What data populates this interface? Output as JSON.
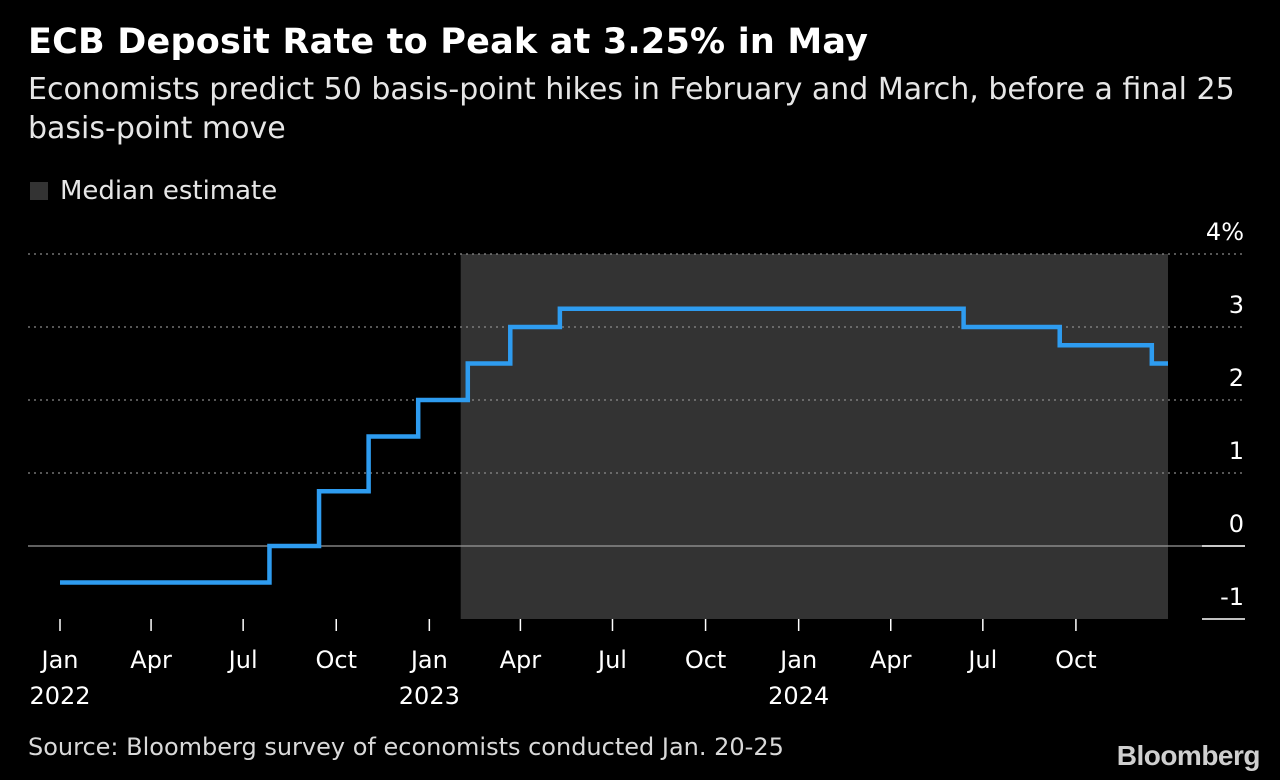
{
  "chart_data": {
    "type": "line",
    "title": "ECB Deposit Rate to Peak at 3.25% in May",
    "subtitle": "Economists predict 50 basis-point hikes in February and March, before a final 25 basis-point move",
    "legend": [
      {
        "label": "Median estimate",
        "color": "#333333"
      }
    ],
    "series": [
      {
        "color": "#2e9cf0",
        "interpolation": "step-after",
        "points": [
          {
            "x": "2022-01-01",
            "y": -0.5
          },
          {
            "x": "2022-07-27",
            "y": 0.0
          },
          {
            "x": "2022-09-14",
            "y": 0.75
          },
          {
            "x": "2022-11-02",
            "y": 1.5
          },
          {
            "x": "2022-12-21",
            "y": 2.0
          },
          {
            "x": "2023-02-08",
            "y": 2.5
          },
          {
            "x": "2023-03-22",
            "y": 3.0
          },
          {
            "x": "2023-05-10",
            "y": 3.25
          },
          {
            "x": "2024-06-12",
            "y": 3.0
          },
          {
            "x": "2024-09-15",
            "y": 2.75
          },
          {
            "x": "2024-12-15",
            "y": 2.5
          },
          {
            "x": "2024-12-31",
            "y": 2.5
          }
        ]
      }
    ],
    "shaded_region": {
      "x_start": "2023-02-01",
      "x_end": "2024-12-31",
      "label": "Median estimate"
    },
    "x_axis": {
      "range": [
        "2022-01-01",
        "2024-12-31"
      ],
      "ticks": [
        {
          "date": "2022-01-01",
          "label": "Jan",
          "year": "2022"
        },
        {
          "date": "2022-04-01",
          "label": "Apr",
          "year": ""
        },
        {
          "date": "2022-07-01",
          "label": "Jul",
          "year": ""
        },
        {
          "date": "2022-10-01",
          "label": "Oct",
          "year": ""
        },
        {
          "date": "2023-01-01",
          "label": "Jan",
          "year": "2023"
        },
        {
          "date": "2023-04-01",
          "label": "Apr",
          "year": ""
        },
        {
          "date": "2023-07-01",
          "label": "Jul",
          "year": ""
        },
        {
          "date": "2023-10-01",
          "label": "Oct",
          "year": ""
        },
        {
          "date": "2024-01-01",
          "label": "Jan",
          "year": "2024"
        },
        {
          "date": "2024-04-01",
          "label": "Apr",
          "year": ""
        },
        {
          "date": "2024-07-01",
          "label": "Jul",
          "year": ""
        },
        {
          "date": "2024-10-01",
          "label": "Oct",
          "year": ""
        }
      ]
    },
    "y_axis": {
      "range": [
        -1,
        4
      ],
      "ticks": [
        {
          "value": 4,
          "label": "4%"
        },
        {
          "value": 3,
          "label": "3"
        },
        {
          "value": 2,
          "label": "2"
        },
        {
          "value": 1,
          "label": "1"
        },
        {
          "value": 0,
          "label": "0"
        },
        {
          "value": -1,
          "label": "-1"
        }
      ],
      "position": "right",
      "grid": "dotted"
    },
    "colors": {
      "background": "#000000",
      "line": "#2e9cf0",
      "shade": "#333333",
      "grid": "#8a8a8a",
      "text": "#ffffff"
    }
  },
  "footer": {
    "source": "Source: Bloomberg survey of economists conducted Jan. 20-25",
    "brand": "Bloomberg"
  }
}
